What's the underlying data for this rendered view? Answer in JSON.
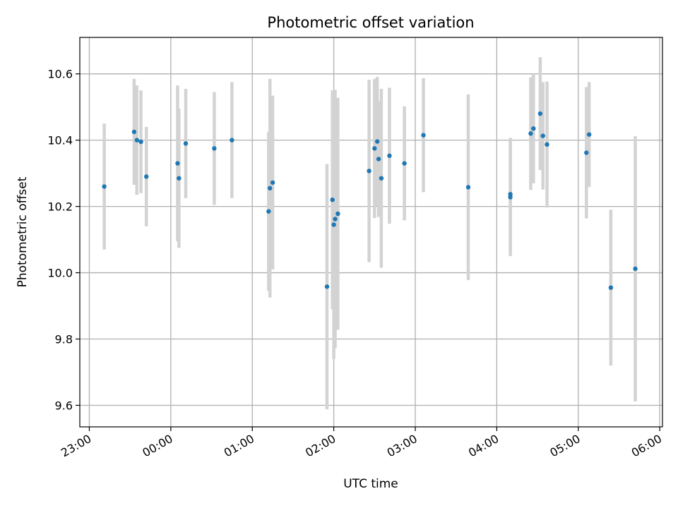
{
  "chart_data": {
    "type": "scatter",
    "title": "Photometric offset variation",
    "xlabel": "UTC time",
    "ylabel": "Photometric offset",
    "x_is_time": true,
    "xlim": [
      "22:53",
      "06:02"
    ],
    "ylim": [
      9.535,
      10.71
    ],
    "xticks": [
      "23:00",
      "00:00",
      "01:00",
      "02:00",
      "03:00",
      "04:00",
      "05:00",
      "06:00"
    ],
    "yticks": [
      9.6,
      9.8,
      10.0,
      10.2,
      10.4,
      10.6
    ],
    "ytick_labels": [
      "9.6",
      "9.8",
      "10.0",
      "10.2",
      "10.4",
      "10.6"
    ],
    "grid": true,
    "colors": {
      "points": "#1f77b4",
      "errorbars": "#d3d3d3",
      "grid": "#b0b0b0"
    },
    "points": [
      {
        "x": "23:11",
        "y": 10.26,
        "err": 0.19
      },
      {
        "x": "23:33",
        "y": 10.425,
        "err": 0.16
      },
      {
        "x": "23:35",
        "y": 10.4,
        "err": 0.165
      },
      {
        "x": "23:38",
        "y": 10.395,
        "err": 0.155
      },
      {
        "x": "23:42",
        "y": 10.29,
        "err": 0.15
      },
      {
        "x": "00:05",
        "y": 10.33,
        "err": 0.235
      },
      {
        "x": "00:06",
        "y": 10.285,
        "err": 0.21
      },
      {
        "x": "00:11",
        "y": 10.39,
        "err": 0.165
      },
      {
        "x": "00:32",
        "y": 10.375,
        "err": 0.17
      },
      {
        "x": "00:45",
        "y": 10.4,
        "err": 0.175
      },
      {
        "x": "01:12",
        "y": 10.185,
        "err": 0.24
      },
      {
        "x": "01:13",
        "y": 10.255,
        "err": 0.33
      },
      {
        "x": "01:15",
        "y": 10.272,
        "err": 0.262
      },
      {
        "x": "01:55",
        "y": 9.958,
        "err": 0.37
      },
      {
        "x": "01:59",
        "y": 10.22,
        "err": 0.33
      },
      {
        "x": "02:00",
        "y": 10.145,
        "err": 0.405
      },
      {
        "x": "02:01",
        "y": 10.162,
        "err": 0.39
      },
      {
        "x": "02:03",
        "y": 10.178,
        "err": 0.35
      },
      {
        "x": "02:26",
        "y": 10.307,
        "err": 0.275
      },
      {
        "x": "02:30",
        "y": 10.375,
        "err": 0.21
      },
      {
        "x": "02:32",
        "y": 10.396,
        "err": 0.195
      },
      {
        "x": "02:33",
        "y": 10.343,
        "err": 0.175
      },
      {
        "x": "02:35",
        "y": 10.285,
        "err": 0.27
      },
      {
        "x": "02:41",
        "y": 10.353,
        "err": 0.205
      },
      {
        "x": "02:52",
        "y": 10.33,
        "err": 0.172
      },
      {
        "x": "03:06",
        "y": 10.415,
        "err": 0.172
      },
      {
        "x": "03:39",
        "y": 10.258,
        "err": 0.28
      },
      {
        "x": "04:10",
        "y": 10.228,
        "err": 0.178
      },
      {
        "x": "04:10",
        "y": 10.237,
        "err": 0.17
      },
      {
        "x": "04:25",
        "y": 10.42,
        "err": 0.17
      },
      {
        "x": "04:27",
        "y": 10.435,
        "err": 0.165
      },
      {
        "x": "04:32",
        "y": 10.48,
        "err": 0.17
      },
      {
        "x": "04:34",
        "y": 10.413,
        "err": 0.162
      },
      {
        "x": "04:37",
        "y": 10.387,
        "err": 0.19
      },
      {
        "x": "05:06",
        "y": 10.362,
        "err": 0.198
      },
      {
        "x": "05:08",
        "y": 10.417,
        "err": 0.158
      },
      {
        "x": "05:24",
        "y": 9.955,
        "err": 0.235
      },
      {
        "x": "05:42",
        "y": 10.012,
        "err": 0.4
      }
    ]
  }
}
